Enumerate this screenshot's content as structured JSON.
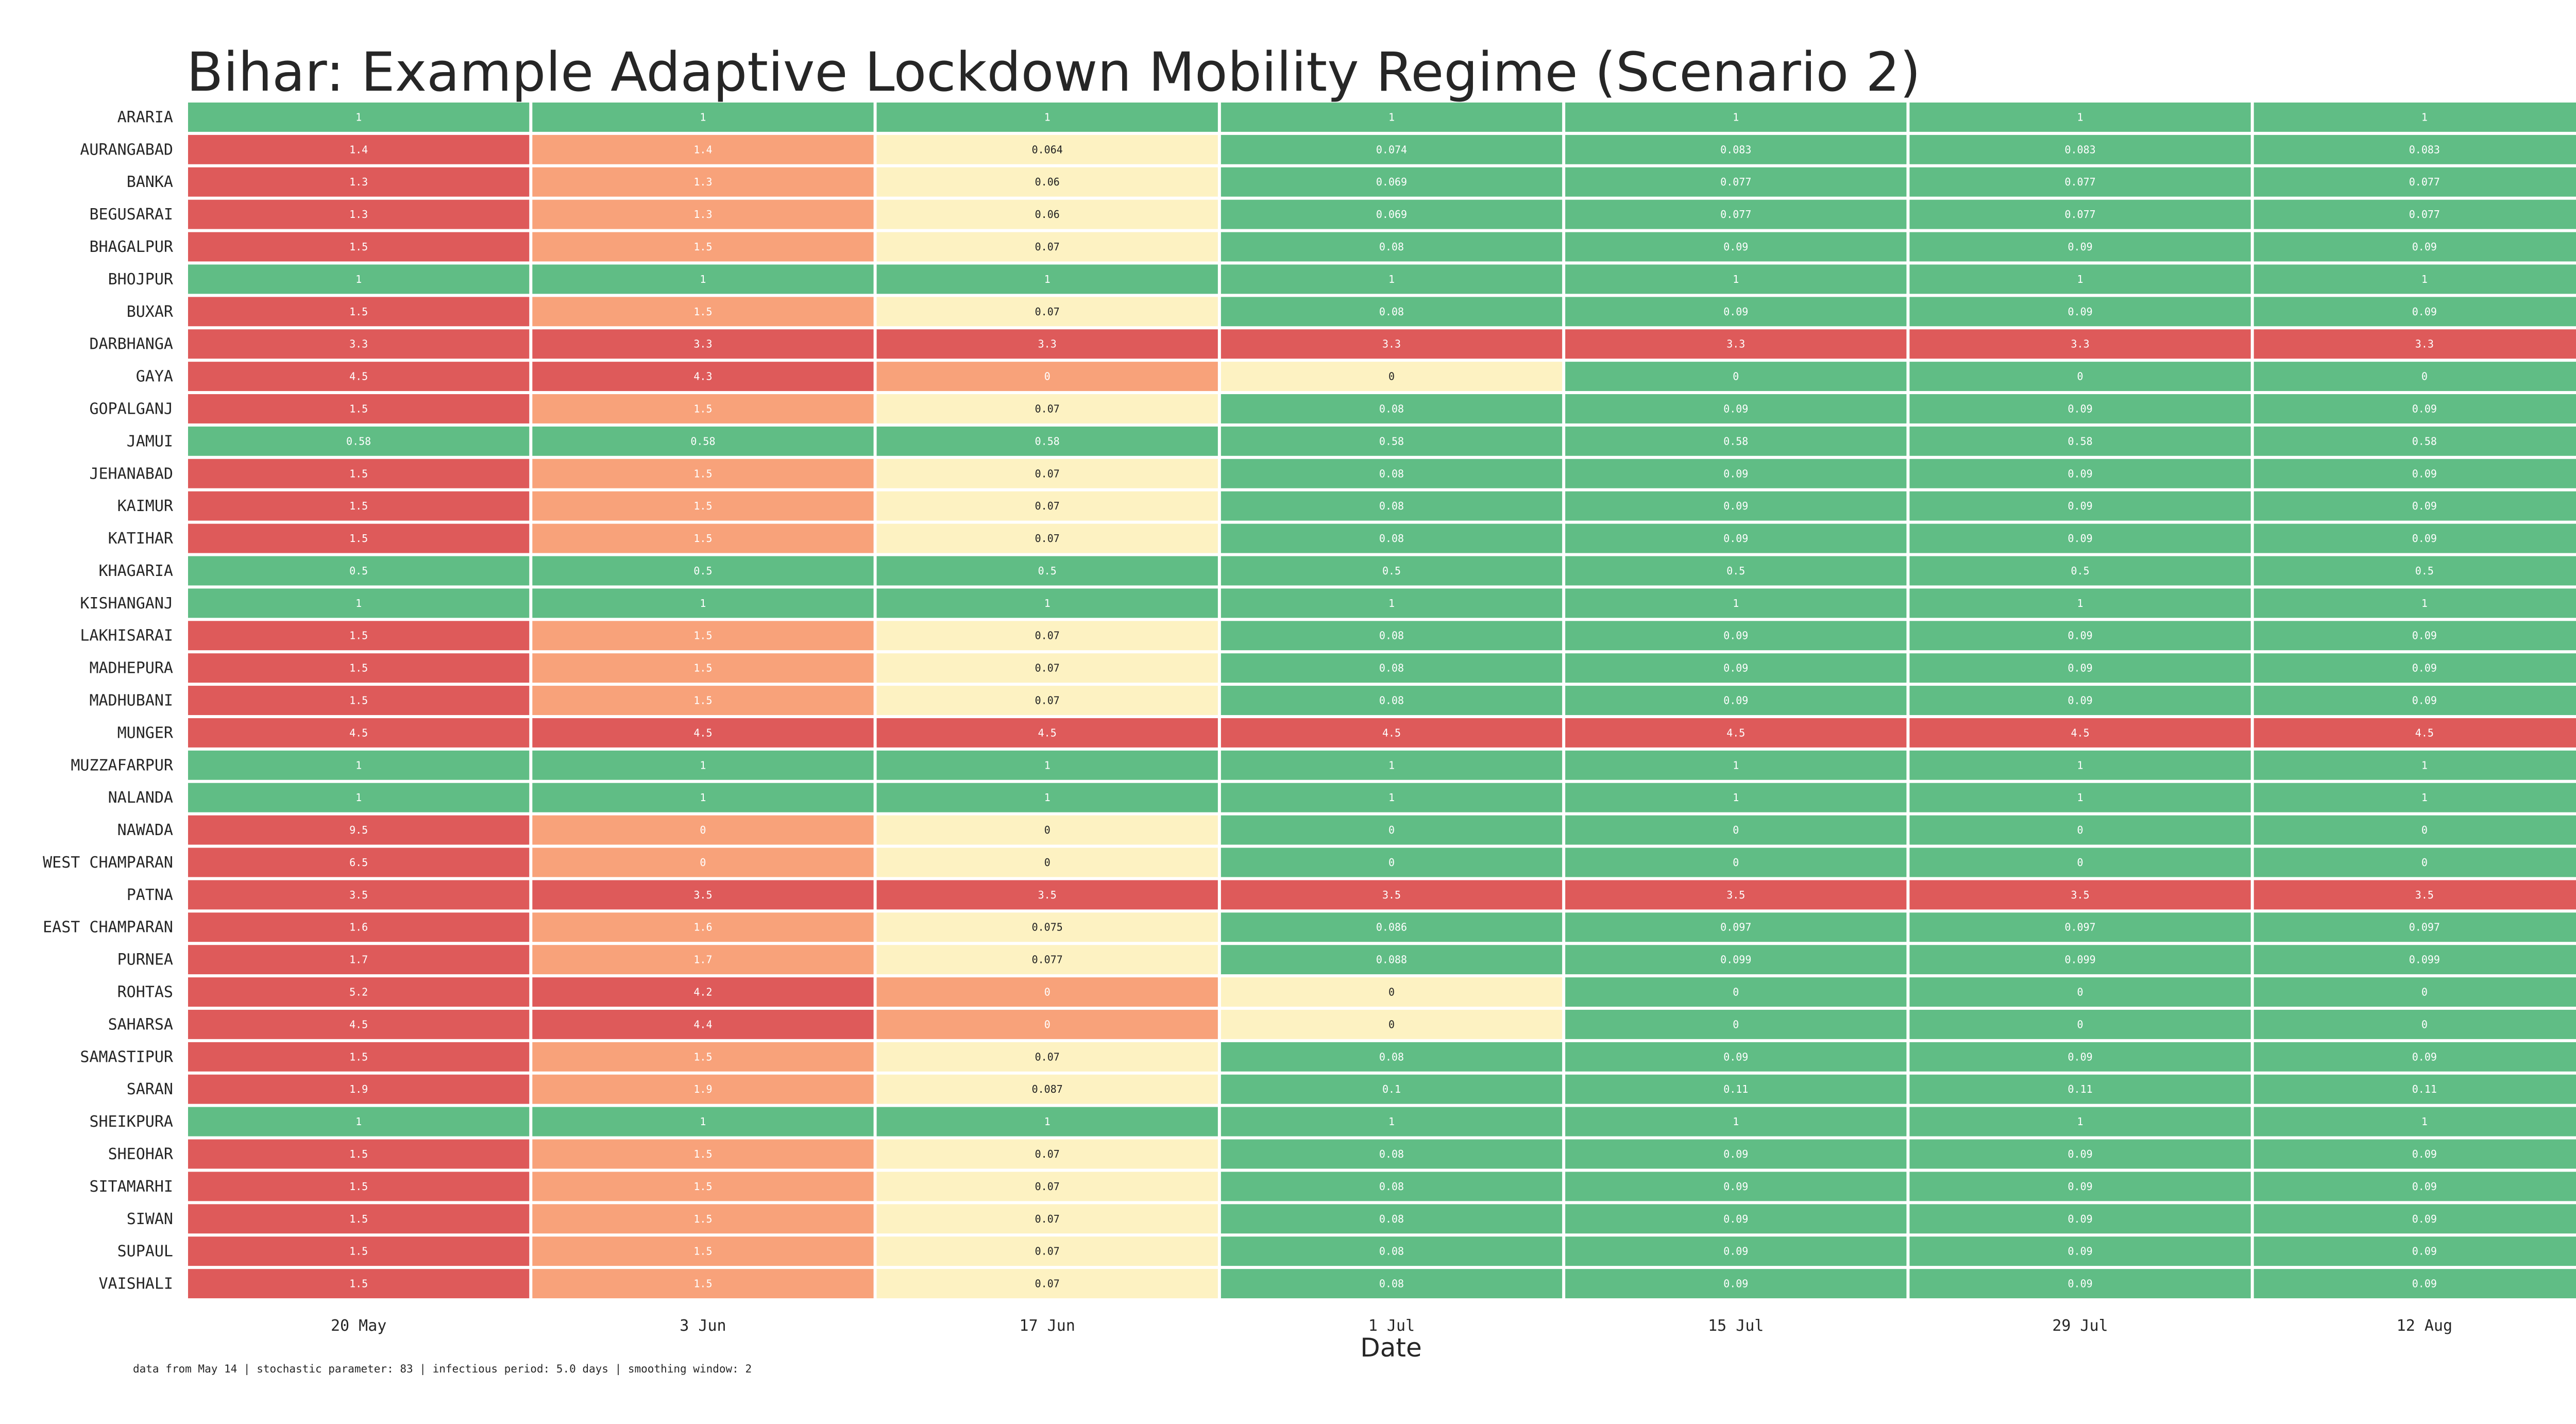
{
  "chart_data": {
    "type": "heatmap",
    "title": "Bihar: Example Adaptive Lockdown Mobility Regime (Scenario 2)",
    "xlabel": "Date",
    "ylabel": "",
    "footnote": "data from May 14 | stochastic parameter: 83 | infectious period: 5.0 days | smoothing window: 2",
    "columns": [
      "20 May",
      "3 Jun",
      "17 Jun",
      "1 Jul",
      "15 Jul",
      "29 Jul",
      "12 Aug"
    ],
    "rows": [
      {
        "district": "ARARIA",
        "values": [
          "1",
          "1",
          "1",
          "1",
          "1",
          "1",
          "1"
        ],
        "levels": [
          "g",
          "g",
          "g",
          "g",
          "g",
          "g",
          "g"
        ]
      },
      {
        "district": "AURANGABAD",
        "values": [
          "1.4",
          "1.4",
          "0.064",
          "0.074",
          "0.083",
          "0.083",
          "0.083"
        ],
        "levels": [
          "r",
          "o",
          "y",
          "g",
          "g",
          "g",
          "g"
        ]
      },
      {
        "district": "BANKA",
        "values": [
          "1.3",
          "1.3",
          "0.06",
          "0.069",
          "0.077",
          "0.077",
          "0.077"
        ],
        "levels": [
          "r",
          "o",
          "y",
          "g",
          "g",
          "g",
          "g"
        ]
      },
      {
        "district": "BEGUSARAI",
        "values": [
          "1.3",
          "1.3",
          "0.06",
          "0.069",
          "0.077",
          "0.077",
          "0.077"
        ],
        "levels": [
          "r",
          "o",
          "y",
          "g",
          "g",
          "g",
          "g"
        ]
      },
      {
        "district": "BHAGALPUR",
        "values": [
          "1.5",
          "1.5",
          "0.07",
          "0.08",
          "0.09",
          "0.09",
          "0.09"
        ],
        "levels": [
          "r",
          "o",
          "y",
          "g",
          "g",
          "g",
          "g"
        ]
      },
      {
        "district": "BHOJPUR",
        "values": [
          "1",
          "1",
          "1",
          "1",
          "1",
          "1",
          "1"
        ],
        "levels": [
          "g",
          "g",
          "g",
          "g",
          "g",
          "g",
          "g"
        ]
      },
      {
        "district": "BUXAR",
        "values": [
          "1.5",
          "1.5",
          "0.07",
          "0.08",
          "0.09",
          "0.09",
          "0.09"
        ],
        "levels": [
          "r",
          "o",
          "y",
          "g",
          "g",
          "g",
          "g"
        ]
      },
      {
        "district": "DARBHANGA",
        "values": [
          "3.3",
          "3.3",
          "3.3",
          "3.3",
          "3.3",
          "3.3",
          "3.3"
        ],
        "levels": [
          "r",
          "r",
          "r",
          "r",
          "r",
          "r",
          "r"
        ]
      },
      {
        "district": "GAYA",
        "values": [
          "4.5",
          "4.3",
          "0",
          "0",
          "0",
          "0",
          "0"
        ],
        "levels": [
          "r",
          "r",
          "o",
          "y",
          "g",
          "g",
          "g"
        ]
      },
      {
        "district": "GOPALGANJ",
        "values": [
          "1.5",
          "1.5",
          "0.07",
          "0.08",
          "0.09",
          "0.09",
          "0.09"
        ],
        "levels": [
          "r",
          "o",
          "y",
          "g",
          "g",
          "g",
          "g"
        ]
      },
      {
        "district": "JAMUI",
        "values": [
          "0.58",
          "0.58",
          "0.58",
          "0.58",
          "0.58",
          "0.58",
          "0.58"
        ],
        "levels": [
          "g",
          "g",
          "g",
          "g",
          "g",
          "g",
          "g"
        ]
      },
      {
        "district": "JEHANABAD",
        "values": [
          "1.5",
          "1.5",
          "0.07",
          "0.08",
          "0.09",
          "0.09",
          "0.09"
        ],
        "levels": [
          "r",
          "o",
          "y",
          "g",
          "g",
          "g",
          "g"
        ]
      },
      {
        "district": "KAIMUR",
        "values": [
          "1.5",
          "1.5",
          "0.07",
          "0.08",
          "0.09",
          "0.09",
          "0.09"
        ],
        "levels": [
          "r",
          "o",
          "y",
          "g",
          "g",
          "g",
          "g"
        ]
      },
      {
        "district": "KATIHAR",
        "values": [
          "1.5",
          "1.5",
          "0.07",
          "0.08",
          "0.09",
          "0.09",
          "0.09"
        ],
        "levels": [
          "r",
          "o",
          "y",
          "g",
          "g",
          "g",
          "g"
        ]
      },
      {
        "district": "KHAGARIA",
        "values": [
          "0.5",
          "0.5",
          "0.5",
          "0.5",
          "0.5",
          "0.5",
          "0.5"
        ],
        "levels": [
          "g",
          "g",
          "g",
          "g",
          "g",
          "g",
          "g"
        ]
      },
      {
        "district": "KISHANGANJ",
        "values": [
          "1",
          "1",
          "1",
          "1",
          "1",
          "1",
          "1"
        ],
        "levels": [
          "g",
          "g",
          "g",
          "g",
          "g",
          "g",
          "g"
        ]
      },
      {
        "district": "LAKHISARAI",
        "values": [
          "1.5",
          "1.5",
          "0.07",
          "0.08",
          "0.09",
          "0.09",
          "0.09"
        ],
        "levels": [
          "r",
          "o",
          "y",
          "g",
          "g",
          "g",
          "g"
        ]
      },
      {
        "district": "MADHEPURA",
        "values": [
          "1.5",
          "1.5",
          "0.07",
          "0.08",
          "0.09",
          "0.09",
          "0.09"
        ],
        "levels": [
          "r",
          "o",
          "y",
          "g",
          "g",
          "g",
          "g"
        ]
      },
      {
        "district": "MADHUBANI",
        "values": [
          "1.5",
          "1.5",
          "0.07",
          "0.08",
          "0.09",
          "0.09",
          "0.09"
        ],
        "levels": [
          "r",
          "o",
          "y",
          "g",
          "g",
          "g",
          "g"
        ]
      },
      {
        "district": "MUNGER",
        "values": [
          "4.5",
          "4.5",
          "4.5",
          "4.5",
          "4.5",
          "4.5",
          "4.5"
        ],
        "levels": [
          "r",
          "r",
          "r",
          "r",
          "r",
          "r",
          "r"
        ]
      },
      {
        "district": "MUZZAFARPUR",
        "values": [
          "1",
          "1",
          "1",
          "1",
          "1",
          "1",
          "1"
        ],
        "levels": [
          "g",
          "g",
          "g",
          "g",
          "g",
          "g",
          "g"
        ]
      },
      {
        "district": "NALANDA",
        "values": [
          "1",
          "1",
          "1",
          "1",
          "1",
          "1",
          "1"
        ],
        "levels": [
          "g",
          "g",
          "g",
          "g",
          "g",
          "g",
          "g"
        ]
      },
      {
        "district": "NAWADA",
        "values": [
          "9.5",
          "0",
          "0",
          "0",
          "0",
          "0",
          "0"
        ],
        "levels": [
          "r",
          "o",
          "y",
          "g",
          "g",
          "g",
          "g"
        ]
      },
      {
        "district": "WEST CHAMPARAN",
        "values": [
          "6.5",
          "0",
          "0",
          "0",
          "0",
          "0",
          "0"
        ],
        "levels": [
          "r",
          "o",
          "y",
          "g",
          "g",
          "g",
          "g"
        ]
      },
      {
        "district": "PATNA",
        "values": [
          "3.5",
          "3.5",
          "3.5",
          "3.5",
          "3.5",
          "3.5",
          "3.5"
        ],
        "levels": [
          "r",
          "r",
          "r",
          "r",
          "r",
          "r",
          "r"
        ]
      },
      {
        "district": "EAST CHAMPARAN",
        "values": [
          "1.6",
          "1.6",
          "0.075",
          "0.086",
          "0.097",
          "0.097",
          "0.097"
        ],
        "levels": [
          "r",
          "o",
          "y",
          "g",
          "g",
          "g",
          "g"
        ]
      },
      {
        "district": "PURNEA",
        "values": [
          "1.7",
          "1.7",
          "0.077",
          "0.088",
          "0.099",
          "0.099",
          "0.099"
        ],
        "levels": [
          "r",
          "o",
          "y",
          "g",
          "g",
          "g",
          "g"
        ]
      },
      {
        "district": "ROHTAS",
        "values": [
          "5.2",
          "4.2",
          "0",
          "0",
          "0",
          "0",
          "0"
        ],
        "levels": [
          "r",
          "r",
          "o",
          "y",
          "g",
          "g",
          "g"
        ]
      },
      {
        "district": "SAHARSA",
        "values": [
          "4.5",
          "4.4",
          "0",
          "0",
          "0",
          "0",
          "0"
        ],
        "levels": [
          "r",
          "r",
          "o",
          "y",
          "g",
          "g",
          "g"
        ]
      },
      {
        "district": "SAMASTIPUR",
        "values": [
          "1.5",
          "1.5",
          "0.07",
          "0.08",
          "0.09",
          "0.09",
          "0.09"
        ],
        "levels": [
          "r",
          "o",
          "y",
          "g",
          "g",
          "g",
          "g"
        ]
      },
      {
        "district": "SARAN",
        "values": [
          "1.9",
          "1.9",
          "0.087",
          "0.1",
          "0.11",
          "0.11",
          "0.11"
        ],
        "levels": [
          "r",
          "o",
          "y",
          "g",
          "g",
          "g",
          "g"
        ]
      },
      {
        "district": "SHEIKPURA",
        "values": [
          "1",
          "1",
          "1",
          "1",
          "1",
          "1",
          "1"
        ],
        "levels": [
          "g",
          "g",
          "g",
          "g",
          "g",
          "g",
          "g"
        ]
      },
      {
        "district": "SHEOHAR",
        "values": [
          "1.5",
          "1.5",
          "0.07",
          "0.08",
          "0.09",
          "0.09",
          "0.09"
        ],
        "levels": [
          "r",
          "o",
          "y",
          "g",
          "g",
          "g",
          "g"
        ]
      },
      {
        "district": "SITAMARHI",
        "values": [
          "1.5",
          "1.5",
          "0.07",
          "0.08",
          "0.09",
          "0.09",
          "0.09"
        ],
        "levels": [
          "r",
          "o",
          "y",
          "g",
          "g",
          "g",
          "g"
        ]
      },
      {
        "district": "SIWAN",
        "values": [
          "1.5",
          "1.5",
          "0.07",
          "0.08",
          "0.09",
          "0.09",
          "0.09"
        ],
        "levels": [
          "r",
          "o",
          "y",
          "g",
          "g",
          "g",
          "g"
        ]
      },
      {
        "district": "SUPAUL",
        "values": [
          "1.5",
          "1.5",
          "0.07",
          "0.08",
          "0.09",
          "0.09",
          "0.09"
        ],
        "levels": [
          "r",
          "o",
          "y",
          "g",
          "g",
          "g",
          "g"
        ]
      },
      {
        "district": "VAISHALI",
        "values": [
          "1.5",
          "1.5",
          "0.07",
          "0.08",
          "0.09",
          "0.09",
          "0.09"
        ],
        "levels": [
          "r",
          "o",
          "y",
          "g",
          "g",
          "g",
          "g"
        ]
      }
    ],
    "colors": {
      "r": {
        "fill": "#de5a5a",
        "text": "#ffffff"
      },
      "o": {
        "fill": "#f8a27a",
        "text": "#ffffff"
      },
      "y": {
        "fill": "#fdf2c2",
        "text": "#222222"
      },
      "g": {
        "fill": "#60bd85",
        "text": "#ffffff"
      }
    }
  }
}
